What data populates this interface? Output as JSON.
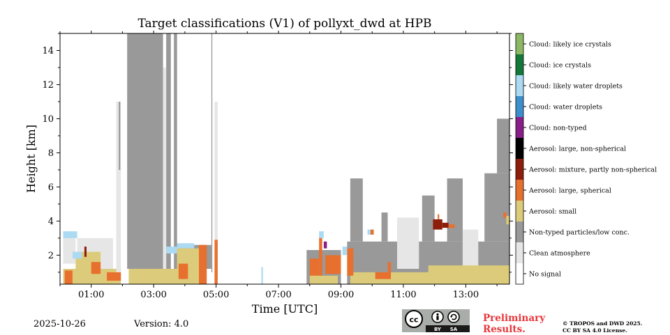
{
  "colors": {
    "no_signal": "#ffffff",
    "clean_atmosphere": "#e6e6e6",
    "non_typed": "#999999",
    "aerosol_small": "#dccb7a",
    "aerosol_large_spherical": "#e7702e",
    "aerosol_mixture": "#8e1e0c",
    "aerosol_large_nonspherical": "#000000",
    "cloud_non_typed": "#881f88",
    "cloud_water_droplets": "#3c8fcb",
    "cloud_likely_water_droplets": "#acdaf2",
    "cloud_ice_crystals": "#13783a",
    "cloud_likely_ice_crystals": "#8cb864",
    "prelim_red": "#e8363a"
  },
  "chart_data": {
    "type": "heatmap",
    "title": "Target classifications (V1) of pollyxt_dwd at HPB",
    "xlabel": "Time [UTC]",
    "ylabel": "Height [km]",
    "xlim_hours": [
      0.0,
      14.4
    ],
    "ylim_km": [
      0.3,
      15.0
    ],
    "x_ticks": [
      {
        "hour": 1,
        "label": "01:00"
      },
      {
        "hour": 3,
        "label": "03:00"
      },
      {
        "hour": 5,
        "label": "05:00"
      },
      {
        "hour": 7,
        "label": "07:00"
      },
      {
        "hour": 9,
        "label": "09:00"
      },
      {
        "hour": 11,
        "label": "11:00"
      },
      {
        "hour": 13,
        "label": "13:00"
      }
    ],
    "x_minor_hours": [
      0,
      2,
      4,
      6,
      8,
      10,
      12,
      14
    ],
    "y_ticks": [
      {
        "km": 2,
        "label": "2"
      },
      {
        "km": 4,
        "label": "4"
      },
      {
        "km": 6,
        "label": "6"
      },
      {
        "km": 8,
        "label": "8"
      },
      {
        "km": 10,
        "label": "10"
      },
      {
        "km": 12,
        "label": "12"
      },
      {
        "km": 14,
        "label": "14"
      }
    ],
    "legend_position": "right",
    "classes": [
      {
        "label": "Cloud: likely ice crystals",
        "color": "#8cb864"
      },
      {
        "label": "Cloud: ice crystals",
        "color": "#13783a"
      },
      {
        "label": "Cloud: likely water droplets",
        "color": "#acdaf2"
      },
      {
        "label": "Cloud: water droplets",
        "color": "#3c8fcb"
      },
      {
        "label": "Cloud: non-typed",
        "color": "#881f88"
      },
      {
        "label": "Aerosol: large, non-spherical",
        "color": "#000000"
      },
      {
        "label": "Aerosol: mixture, partly non-spherical",
        "color": "#8e1e0c"
      },
      {
        "label": "Aerosol: large, spherical",
        "color": "#e7702e"
      },
      {
        "label": "Aerosol: small",
        "color": "#dccb7a"
      },
      {
        "label": "Non-typed particles/low conc.",
        "color": "#999999"
      },
      {
        "label": "Clean atmosphere",
        "color": "#e6e6e6"
      },
      {
        "label": "No signal",
        "color": "#ffffff"
      }
    ],
    "regions": [
      {
        "cls": "clean_atmosphere",
        "t0": 0.1,
        "t1": 0.5,
        "h0": 1.5,
        "h1": 3.3
      },
      {
        "cls": "cloud_likely_water_droplets",
        "t0": 0.1,
        "t1": 0.55,
        "h0": 3.0,
        "h1": 3.4
      },
      {
        "cls": "clean_atmosphere",
        "t0": 0.55,
        "t1": 1.7,
        "h0": 1.2,
        "h1": 3.0
      },
      {
        "cls": "aerosol_small",
        "t0": 0.1,
        "t1": 1.95,
        "h0": 0.3,
        "h1": 1.2
      },
      {
        "cls": "aerosol_small",
        "t0": 0.5,
        "t1": 1.3,
        "h0": 1.0,
        "h1": 2.2
      },
      {
        "cls": "aerosol_large_spherical",
        "t0": 0.15,
        "t1": 0.4,
        "h0": 0.3,
        "h1": 1.1
      },
      {
        "cls": "aerosol_large_spherical",
        "t0": 1.0,
        "t1": 1.3,
        "h0": 0.9,
        "h1": 1.6
      },
      {
        "cls": "aerosol_large_spherical",
        "t0": 1.5,
        "t1": 1.95,
        "h0": 0.5,
        "h1": 1.0
      },
      {
        "cls": "aerosol_mixture",
        "t0": 0.78,
        "t1": 0.85,
        "h0": 1.9,
        "h1": 2.5
      },
      {
        "cls": "cloud_likely_water_droplets",
        "t0": 0.4,
        "t1": 0.7,
        "h0": 1.8,
        "h1": 2.2
      },
      {
        "cls": "clean_atmosphere",
        "t0": 1.8,
        "t1": 1.95,
        "h0": 1.0,
        "h1": 11.0
      },
      {
        "cls": "non_typed",
        "t0": 1.88,
        "t1": 1.93,
        "h0": 7.0,
        "h1": 11.0
      },
      {
        "cls": "non_typed",
        "t0": 2.15,
        "t1": 3.3,
        "h0": 1.2,
        "h1": 15.0
      },
      {
        "cls": "non_typed",
        "t0": 3.4,
        "t1": 3.55,
        "h0": 1.2,
        "h1": 15.0
      },
      {
        "cls": "non_typed",
        "t0": 3.65,
        "t1": 3.75,
        "h0": 1.2,
        "h1": 15.0
      },
      {
        "cls": "clean_atmosphere",
        "t0": 3.3,
        "t1": 3.4,
        "h0": 1.2,
        "h1": 13.0
      },
      {
        "cls": "non_typed",
        "t0": 3.75,
        "t1": 4.85,
        "h0": 1.2,
        "h1": 2.6
      },
      {
        "cls": "non_typed",
        "t0": 4.85,
        "t1": 4.88,
        "h0": 1.0,
        "h1": 15.0
      },
      {
        "cls": "clean_atmosphere",
        "t0": 4.95,
        "t1": 5.05,
        "h0": 2.8,
        "h1": 11.0
      },
      {
        "cls": "aerosol_small",
        "t0": 2.2,
        "t1": 4.6,
        "h0": 0.3,
        "h1": 1.2
      },
      {
        "cls": "aerosol_small",
        "t0": 3.75,
        "t1": 4.6,
        "h0": 0.3,
        "h1": 2.4
      },
      {
        "cls": "aerosol_large_spherical",
        "t0": 3.8,
        "t1": 4.1,
        "h0": 0.6,
        "h1": 1.5
      },
      {
        "cls": "aerosol_large_spherical",
        "t0": 4.45,
        "t1": 4.7,
        "h0": 0.3,
        "h1": 2.6
      },
      {
        "cls": "cloud_likely_water_droplets",
        "t0": 3.4,
        "t1": 3.75,
        "h0": 2.1,
        "h1": 2.5
      },
      {
        "cls": "cloud_likely_water_droplets",
        "t0": 3.75,
        "t1": 4.3,
        "h0": 2.4,
        "h1": 2.7
      },
      {
        "cls": "aerosol_large_spherical",
        "t0": 4.95,
        "t1": 5.05,
        "h0": 0.3,
        "h1": 2.9
      },
      {
        "cls": "cloud_likely_water_droplets",
        "t0": 6.45,
        "t1": 6.5,
        "h0": 0.3,
        "h1": 1.3
      },
      {
        "cls": "non_typed",
        "t0": 7.9,
        "t1": 9.0,
        "h0": 0.3,
        "h1": 2.3
      },
      {
        "cls": "aerosol_large_spherical",
        "t0": 8.0,
        "t1": 8.3,
        "h0": 0.3,
        "h1": 1.8
      },
      {
        "cls": "aerosol_large_spherical",
        "t0": 8.3,
        "t1": 8.4,
        "h0": 0.3,
        "h1": 3.1
      },
      {
        "cls": "aerosol_small",
        "t0": 8.0,
        "t1": 8.9,
        "h0": 0.3,
        "h1": 0.8
      },
      {
        "cls": "aerosol_large_spherical",
        "t0": 8.5,
        "t1": 9.0,
        "h0": 0.9,
        "h1": 2.0
      },
      {
        "cls": "cloud_non_typed",
        "t0": 8.45,
        "t1": 8.55,
        "h0": 2.4,
        "h1": 2.8
      },
      {
        "cls": "cloud_likely_water_droplets",
        "t0": 8.3,
        "t1": 8.45,
        "h0": 3.0,
        "h1": 3.4
      },
      {
        "cls": "non_typed",
        "t0": 9.2,
        "t1": 14.4,
        "h0": 0.3,
        "h1": 2.8
      },
      {
        "cls": "non_typed",
        "t0": 9.3,
        "t1": 9.7,
        "h0": 2.8,
        "h1": 6.5
      },
      {
        "cls": "non_typed",
        "t0": 10.3,
        "t1": 10.5,
        "h0": 2.8,
        "h1": 4.5
      },
      {
        "cls": "non_typed",
        "t0": 11.6,
        "t1": 12.0,
        "h0": 2.8,
        "h1": 5.5
      },
      {
        "cls": "non_typed",
        "t0": 12.4,
        "t1": 12.9,
        "h0": 2.8,
        "h1": 6.5
      },
      {
        "cls": "non_typed",
        "t0": 13.6,
        "t1": 14.4,
        "h0": 2.8,
        "h1": 6.8
      },
      {
        "cls": "non_typed",
        "t0": 14.0,
        "t1": 14.4,
        "h0": 6.8,
        "h1": 10.0
      },
      {
        "cls": "clean_atmosphere",
        "t0": 10.8,
        "t1": 11.5,
        "h0": 1.2,
        "h1": 4.2
      },
      {
        "cls": "clean_atmosphere",
        "t0": 12.9,
        "t1": 13.4,
        "h0": 1.2,
        "h1": 3.5
      },
      {
        "cls": "aerosol_small",
        "t0": 9.3,
        "t1": 14.4,
        "h0": 0.3,
        "h1": 1.0
      },
      {
        "cls": "aerosol_small",
        "t0": 11.8,
        "t1": 14.4,
        "h0": 0.8,
        "h1": 1.4
      },
      {
        "cls": "aerosol_large_spherical",
        "t0": 9.2,
        "t1": 9.4,
        "h0": 0.8,
        "h1": 2.4
      },
      {
        "cls": "aerosol_large_spherical",
        "t0": 10.1,
        "t1": 10.6,
        "h0": 0.6,
        "h1": 1.0
      },
      {
        "cls": "aerosol_large_spherical",
        "t0": 10.5,
        "t1": 10.6,
        "h0": 1.0,
        "h1": 1.6
      },
      {
        "cls": "aerosol_large_spherical",
        "t0": 9.95,
        "t1": 10.05,
        "h0": 3.2,
        "h1": 3.5
      },
      {
        "cls": "aerosol_large_spherical",
        "t0": 14.2,
        "t1": 14.3,
        "h0": 4.2,
        "h1": 4.5
      },
      {
        "cls": "aerosol_small",
        "t0": 14.3,
        "t1": 14.4,
        "h0": 3.8,
        "h1": 4.3
      },
      {
        "cls": "cloud_likely_water_droplets",
        "t0": 9.85,
        "t1": 9.95,
        "h0": 3.2,
        "h1": 3.5
      },
      {
        "cls": "cloud_likely_water_droplets",
        "t0": 9.05,
        "t1": 9.2,
        "h0": 2.0,
        "h1": 2.5
      },
      {
        "cls": "aerosol_mixture",
        "t0": 11.95,
        "t1": 12.25,
        "h0": 3.5,
        "h1": 4.1
      },
      {
        "cls": "aerosol_mixture",
        "t0": 12.25,
        "t1": 12.45,
        "h0": 3.6,
        "h1": 3.9
      },
      {
        "cls": "aerosol_large_spherical",
        "t0": 12.1,
        "t1": 12.15,
        "h0": 4.1,
        "h1": 4.4
      },
      {
        "cls": "aerosol_large_spherical",
        "t0": 12.45,
        "t1": 12.65,
        "h0": 3.6,
        "h1": 3.8
      }
    ]
  },
  "footer": {
    "date": "2025-10-26",
    "version": "Version: 4.0",
    "preliminary_line1": "Preliminary",
    "preliminary_line2": "Results.",
    "copyright_line1": "© TROPOS and DWD 2025.",
    "copyright_line2": "CC BY SA 4.0 License.",
    "license_badge": {
      "cc": "cc",
      "by": "BY",
      "sa": "SA"
    }
  }
}
